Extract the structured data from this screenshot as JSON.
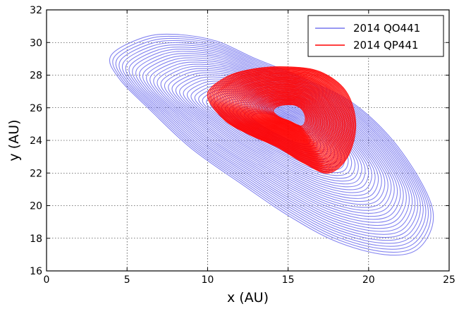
{
  "chart_data": {
    "type": "line",
    "xlabel": "x (AU)",
    "ylabel": "y (AU)",
    "xlim": [
      0,
      25
    ],
    "ylim": [
      16,
      32
    ],
    "xticks": [
      "0",
      "5",
      "10",
      "15",
      "20",
      "25"
    ],
    "yticks": [
      "16",
      "18",
      "20",
      "22",
      "24",
      "26",
      "28",
      "30",
      "32"
    ],
    "grid": true,
    "legend": {
      "placement": "top-right"
    },
    "series": [
      {
        "name": "2014 QO441",
        "color": "#7777ee",
        "description_points": [
          [
            4.0,
            29.2
          ],
          [
            6.0,
            30.3
          ],
          [
            8.0,
            30.5
          ],
          [
            10.5,
            30.1
          ],
          [
            13.0,
            29.0
          ],
          [
            16.0,
            27.8
          ],
          [
            19.0,
            26.3
          ],
          [
            21.5,
            24.0
          ],
          [
            23.5,
            21.0
          ],
          [
            24.0,
            19.0
          ],
          [
            23.0,
            17.3
          ],
          [
            21.0,
            17.0
          ],
          [
            18.0,
            17.8
          ],
          [
            15.0,
            19.4
          ],
          [
            12.0,
            21.4
          ],
          [
            9.0,
            23.5
          ],
          [
            6.5,
            25.8
          ],
          [
            4.5,
            27.8
          ]
        ]
      },
      {
        "name": "2014 QP441",
        "color": "#ff0000",
        "description_points": [
          [
            10.0,
            26.8
          ],
          [
            11.2,
            27.9
          ],
          [
            13.0,
            28.4
          ],
          [
            15.0,
            28.5
          ],
          [
            17.0,
            28.2
          ],
          [
            18.6,
            27.0
          ],
          [
            19.2,
            25.0
          ],
          [
            18.7,
            23.0
          ],
          [
            17.5,
            22.0
          ],
          [
            16.0,
            22.6
          ],
          [
            14.3,
            23.6
          ],
          [
            12.5,
            24.4
          ],
          [
            11.0,
            25.3
          ]
        ]
      }
    ]
  }
}
